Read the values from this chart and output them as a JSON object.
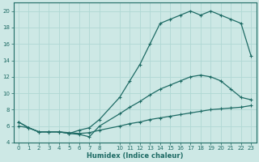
{
  "xlabel": "Humidex (Indice chaleur)",
  "bg_color": "#cde8e5",
  "line_color": "#1e6b65",
  "grid_color": "#b0d8d4",
  "ylim": [
    4,
    21
  ],
  "xlim": [
    -0.5,
    23.5
  ],
  "yticks": [
    4,
    6,
    8,
    10,
    12,
    14,
    16,
    18,
    20
  ],
  "xticks": [
    0,
    1,
    2,
    3,
    4,
    5,
    6,
    7,
    8,
    10,
    11,
    12,
    13,
    14,
    15,
    16,
    17,
    18,
    19,
    20,
    21,
    22,
    23
  ],
  "curve1_x": [
    0,
    1,
    2,
    3,
    4,
    5,
    6,
    7,
    8,
    10,
    11,
    12,
    13,
    14,
    15,
    16,
    17,
    18,
    19,
    20,
    21,
    22,
    23
  ],
  "curve1_y": [
    6.5,
    5.8,
    5.3,
    5.3,
    5.3,
    5.1,
    5.5,
    5.8,
    6.8,
    9.5,
    11.5,
    13.5,
    16.0,
    18.5,
    19.0,
    19.5,
    20.0,
    19.5,
    20.0,
    19.5,
    19.0,
    18.5,
    14.5
  ],
  "curve2_x": [
    0,
    1,
    2,
    3,
    4,
    5,
    6,
    7,
    8,
    10,
    11,
    12,
    13,
    14,
    15,
    16,
    17,
    18,
    19,
    20,
    21,
    22,
    23
  ],
  "curve2_y": [
    6.5,
    5.8,
    5.3,
    5.3,
    5.3,
    5.1,
    5.0,
    4.7,
    6.0,
    7.5,
    8.3,
    9.0,
    9.8,
    10.5,
    11.0,
    11.5,
    12.0,
    12.2,
    12.0,
    11.5,
    10.5,
    9.5,
    9.2
  ],
  "curve3_x": [
    0,
    1,
    2,
    3,
    4,
    5,
    6,
    7,
    8,
    10,
    11,
    12,
    13,
    14,
    15,
    16,
    17,
    18,
    19,
    20,
    21,
    22,
    23
  ],
  "curve3_y": [
    6.0,
    5.8,
    5.3,
    5.3,
    5.3,
    5.2,
    5.1,
    5.2,
    5.5,
    6.0,
    6.3,
    6.5,
    6.8,
    7.0,
    7.2,
    7.4,
    7.6,
    7.8,
    8.0,
    8.1,
    8.2,
    8.3,
    8.5
  ]
}
